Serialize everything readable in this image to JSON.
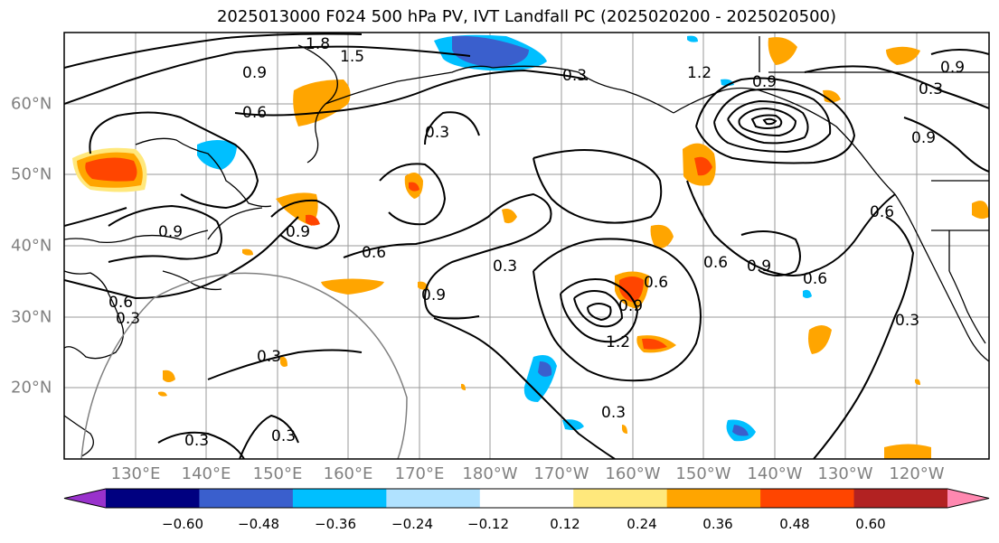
{
  "title": "2025013000 F024 500 hPa PV, IVT Landfall PC (2025020200 - 2025020500)",
  "lon_labels": [
    "130°E",
    "140°E",
    "150°E",
    "160°E",
    "170°E",
    "180°W",
    "170°W",
    "160°W",
    "150°W",
    "140°W",
    "130°W",
    "120°W"
  ],
  "lat_labels": [
    "60°N",
    "50°N",
    "40°N",
    "30°N",
    "20°N"
  ],
  "colorbar": {
    "ticks": [
      "−0.60",
      "−0.48",
      "−0.36",
      "−0.24",
      "−0.12",
      "0.12",
      "0.24",
      "0.36",
      "0.48",
      "0.60"
    ],
    "colors": [
      "#9932cc",
      "#000080",
      "#3a5fcd",
      "#00bfff",
      "#b0e2ff",
      "#ffffff",
      "#ffe87c",
      "#ffa500",
      "#ff4500",
      "#b22222",
      "#ff88b0"
    ]
  },
  "contour_labels": {
    "l1": "1.8",
    "l2": "1.5",
    "l3": "0.9",
    "l4": "0.6",
    "l5": "0.3",
    "l6": "0.3",
    "l7": "0.9",
    "l8": "0.9",
    "l9": "0.6",
    "l10": "0.3",
    "l11": "0.9",
    "l12": "0.6",
    "l13": "0.9",
    "l14": "0.6",
    "l15": "0.9",
    "l16": "0.6",
    "l17": "1.2",
    "l18": "0.3",
    "l19": "0.3",
    "l20": "0.3",
    "l21": "0.3",
    "l22": "1.2",
    "l23": "0.9",
    "l24": "0.6",
    "l25": "0.3",
    "l26": "0.6",
    "l27": "0.3",
    "l28": "0.9",
    "l29": "0.9",
    "l30": "0.3"
  }
}
